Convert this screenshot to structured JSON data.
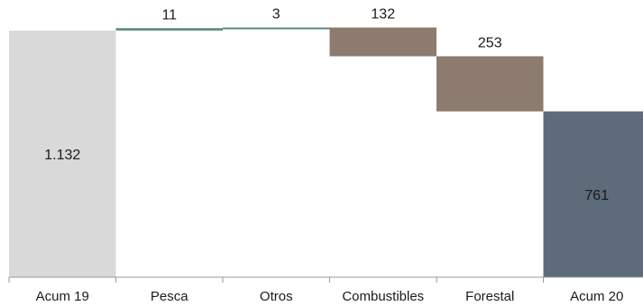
{
  "chart_data": {
    "type": "waterfall",
    "title": "",
    "xlabel": "",
    "ylabel": "",
    "ylim": [
      0,
      1160
    ],
    "grid": false,
    "legend": "none",
    "categories": [
      "Acum 19",
      "Pesca",
      "Otros",
      "Combustibles",
      "Forestal",
      "Acum 20"
    ],
    "steps": [
      {
        "category": "Acum 19",
        "kind": "total",
        "value": 1132,
        "label": "1.132",
        "label_position": "inside",
        "color": "#d9d9d9",
        "label_color": "#1a1a1a"
      },
      {
        "category": "Pesca",
        "kind": "increase",
        "value": 11,
        "label": "11",
        "label_position": "above",
        "color": "#5d8a80",
        "label_color": "#1a1a1a"
      },
      {
        "category": "Otros",
        "kind": "increase",
        "value": 3,
        "label": "3",
        "label_position": "above",
        "color": "#5d8a80",
        "label_color": "#1a1a1a"
      },
      {
        "category": "Combustibles",
        "kind": "decrease",
        "value": 132,
        "label": "132",
        "label_position": "above",
        "color": "#8c7b6e",
        "label_color": "#1a1a1a"
      },
      {
        "category": "Forestal",
        "kind": "decrease",
        "value": 253,
        "label": "253",
        "label_position": "above",
        "color": "#8c7b6e",
        "label_color": "#1a1a1a"
      },
      {
        "category": "Acum 20",
        "kind": "total",
        "value": 761,
        "label": "761",
        "label_position": "inside",
        "color": "#5d6b7a",
        "label_color": "#ffffff"
      }
    ]
  }
}
